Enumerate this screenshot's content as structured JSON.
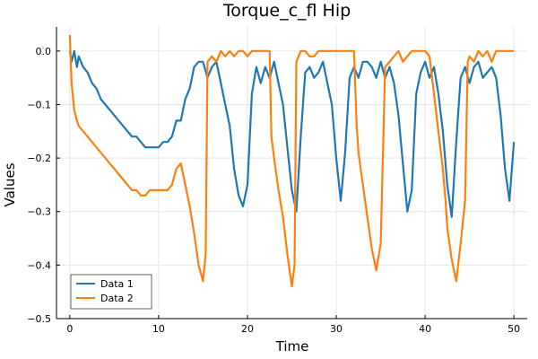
{
  "chart_data": {
    "type": "line",
    "title": "Torque_c_fl Hip",
    "xlabel": "Time",
    "ylabel": "Values",
    "xlim": [
      -1.5,
      51.5
    ],
    "ylim": [
      -0.5,
      0.045
    ],
    "x_ticks": [
      0,
      10,
      20,
      30,
      40,
      50
    ],
    "x_tick_labels": [
      "0",
      "10",
      "20",
      "30",
      "40",
      "50"
    ],
    "y_ticks": [
      0.0,
      -0.1,
      -0.2,
      -0.3,
      -0.4,
      -0.5
    ],
    "y_tick_labels": [
      "0.0",
      "−0.1",
      "−0.2",
      "−0.3",
      "−0.4",
      "−0.5"
    ],
    "grid": true,
    "legend_position": "bottom-left",
    "series": [
      {
        "name": "Data 1",
        "color": "#1f77b4",
        "x": [
          0,
          0.2,
          0.5,
          0.8,
          1.0,
          1.5,
          2.0,
          2.5,
          3.0,
          3.5,
          4.0,
          4.5,
          5.0,
          5.5,
          6.0,
          6.5,
          7.0,
          7.5,
          8.0,
          8.5,
          9.0,
          9.5,
          10.0,
          10.5,
          11.0,
          11.5,
          12.0,
          12.5,
          13.0,
          13.5,
          14.0,
          14.5,
          15.0,
          15.5,
          16.0,
          16.5,
          17.0,
          17.5,
          18.0,
          18.5,
          19.0,
          19.5,
          20.0,
          20.5,
          21.0,
          21.5,
          22.0,
          22.5,
          23.0,
          23.5,
          24.0,
          24.5,
          25.0,
          25.5,
          26.0,
          26.5,
          27.0,
          27.5,
          28.0,
          28.5,
          29.0,
          29.5,
          30.0,
          30.5,
          31.0,
          31.5,
          32.0,
          32.5,
          33.0,
          33.5,
          34.0,
          34.5,
          35.0,
          35.5,
          36.0,
          36.5,
          37.0,
          37.5,
          38.0,
          38.5,
          39.0,
          39.5,
          40.0,
          40.5,
          41.0,
          41.5,
          42.0,
          42.5,
          43.0,
          43.5,
          44.0,
          44.5,
          45.0,
          45.5,
          46.0,
          46.5,
          47.0,
          47.5,
          48.0,
          48.5,
          49.0,
          49.5,
          50.0
        ],
        "y": [
          0.0,
          -0.02,
          0.0,
          -0.03,
          -0.01,
          -0.03,
          -0.04,
          -0.06,
          -0.07,
          -0.09,
          -0.1,
          -0.11,
          -0.12,
          -0.13,
          -0.14,
          -0.15,
          -0.16,
          -0.16,
          -0.17,
          -0.18,
          -0.18,
          -0.18,
          -0.18,
          -0.17,
          -0.17,
          -0.16,
          -0.13,
          -0.13,
          -0.09,
          -0.07,
          -0.03,
          -0.02,
          -0.02,
          -0.05,
          -0.03,
          -0.02,
          -0.06,
          -0.1,
          -0.14,
          -0.22,
          -0.27,
          -0.29,
          -0.25,
          -0.08,
          -0.03,
          -0.06,
          -0.03,
          -0.05,
          -0.02,
          -0.06,
          -0.1,
          -0.18,
          -0.26,
          -0.3,
          -0.16,
          -0.04,
          -0.03,
          -0.05,
          -0.04,
          -0.02,
          -0.06,
          -0.1,
          -0.2,
          -0.28,
          -0.19,
          -0.05,
          -0.03,
          -0.05,
          -0.02,
          -0.02,
          -0.03,
          -0.05,
          -0.02,
          -0.05,
          -0.03,
          -0.06,
          -0.12,
          -0.21,
          -0.3,
          -0.26,
          -0.08,
          -0.04,
          -0.02,
          -0.05,
          -0.03,
          -0.08,
          -0.15,
          -0.25,
          -0.31,
          -0.17,
          -0.05,
          -0.03,
          -0.06,
          -0.03,
          -0.02,
          -0.05,
          -0.04,
          -0.03,
          -0.05,
          -0.12,
          -0.22,
          -0.28,
          -0.17
        ]
      },
      {
        "name": "Data 2",
        "color": "#ff7f0e",
        "x": [
          0,
          0.2,
          0.5,
          0.8,
          1.0,
          1.5,
          2.0,
          2.5,
          3.0,
          3.5,
          4.0,
          4.5,
          5.0,
          5.5,
          6.0,
          6.5,
          7.0,
          7.5,
          8.0,
          8.5,
          9.0,
          9.5,
          10.0,
          10.5,
          11.0,
          11.5,
          12.0,
          12.5,
          13.0,
          13.5,
          14.0,
          14.5,
          15.0,
          15.3,
          15.5,
          16.0,
          16.5,
          17.0,
          17.5,
          18.0,
          18.5,
          19.0,
          19.5,
          20.0,
          20.5,
          21.0,
          21.5,
          22.0,
          22.5,
          22.7,
          23.0,
          23.5,
          24.0,
          24.5,
          25.0,
          25.3,
          25.5,
          26.0,
          26.5,
          27.0,
          27.5,
          28.0,
          28.5,
          29.0,
          29.5,
          30.0,
          30.5,
          31.0,
          31.5,
          32.0,
          32.3,
          32.5,
          33.0,
          33.5,
          34.0,
          34.5,
          35.0,
          35.5,
          36.0,
          36.5,
          37.0,
          37.5,
          38.0,
          38.5,
          39.0,
          39.5,
          40.0,
          40.5,
          41.0,
          41.5,
          42.0,
          42.3,
          42.5,
          43.0,
          43.5,
          44.0,
          44.5,
          44.8,
          45.0,
          45.5,
          46.0,
          46.5,
          47.0,
          47.5,
          48.0,
          48.5,
          49.0,
          49.5,
          50.0
        ],
        "y": [
          0.03,
          -0.06,
          -0.11,
          -0.13,
          -0.14,
          -0.15,
          -0.16,
          -0.17,
          -0.18,
          -0.19,
          -0.2,
          -0.21,
          -0.22,
          -0.23,
          -0.24,
          -0.25,
          -0.26,
          -0.26,
          -0.27,
          -0.27,
          -0.26,
          -0.26,
          -0.26,
          -0.26,
          -0.26,
          -0.25,
          -0.22,
          -0.21,
          -0.25,
          -0.29,
          -0.34,
          -0.4,
          -0.43,
          -0.38,
          -0.02,
          -0.01,
          -0.02,
          0.0,
          -0.01,
          0.0,
          -0.01,
          0.0,
          0.0,
          -0.01,
          0.0,
          0.0,
          0.0,
          0.0,
          0.0,
          -0.16,
          -0.2,
          -0.26,
          -0.31,
          -0.38,
          -0.44,
          -0.4,
          -0.02,
          0.0,
          0.0,
          -0.01,
          -0.01,
          0.0,
          0.0,
          0.0,
          0.0,
          0.0,
          0.0,
          0.0,
          0.0,
          0.0,
          -0.14,
          -0.19,
          -0.25,
          -0.31,
          -0.37,
          -0.41,
          -0.36,
          -0.03,
          -0.02,
          -0.01,
          0.0,
          -0.02,
          -0.01,
          0.0,
          0.0,
          0.0,
          0.0,
          -0.01,
          -0.08,
          -0.15,
          -0.22,
          -0.28,
          -0.33,
          -0.39,
          -0.43,
          -0.36,
          -0.28,
          -0.02,
          -0.01,
          -0.02,
          0.0,
          -0.01,
          0.0,
          -0.02,
          0.0,
          0.0,
          0.0,
          0.0,
          0.0
        ]
      }
    ]
  }
}
